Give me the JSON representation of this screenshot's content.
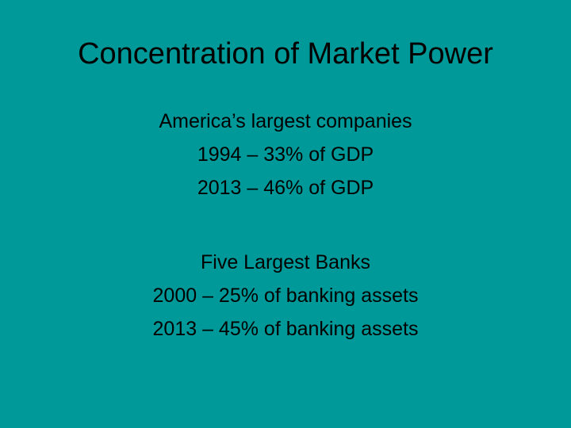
{
  "slide": {
    "title": "Concentration of Market Power",
    "body": {
      "section1": {
        "heading": "America’s largest companies",
        "lines": [
          "1994 – 33% of GDP",
          "2013 – 46% of GDP"
        ]
      },
      "section2": {
        "heading": "Five Largest Banks",
        "lines": [
          "2000 – 25% of banking assets",
          "2013 – 45% of banking assets"
        ]
      }
    }
  }
}
